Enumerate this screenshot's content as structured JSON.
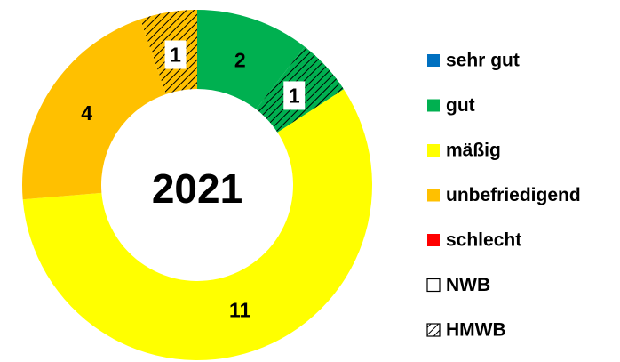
{
  "chart_data": {
    "type": "pie",
    "center_label": "2021",
    "segments": [
      {
        "color": "#00b050",
        "hatched": false,
        "value": 2
      },
      {
        "color": "#00b050",
        "hatched": true,
        "value": 1
      },
      {
        "color": "#ffff00",
        "hatched": false,
        "value": 11
      },
      {
        "color": "#ffc000",
        "hatched": false,
        "value": 4
      },
      {
        "color": "#ffc000",
        "hatched": true,
        "value": 1
      }
    ],
    "legend": [
      {
        "name": "sehr gut",
        "color": "#0070c0",
        "hatched": false
      },
      {
        "name": "gut",
        "color": "#00b050",
        "hatched": false
      },
      {
        "name": "mäßig",
        "color": "#ffff00",
        "hatched": false
      },
      {
        "name": "unbefriedigend",
        "color": "#ffc000",
        "hatched": false
      },
      {
        "name": "schlecht",
        "color": "#ff0000",
        "hatched": false
      },
      {
        "name": "NWB",
        "color": "#ffffff",
        "hatched": false
      },
      {
        "name": "HMWB",
        "color": "#ffffff",
        "hatched": true
      }
    ]
  }
}
